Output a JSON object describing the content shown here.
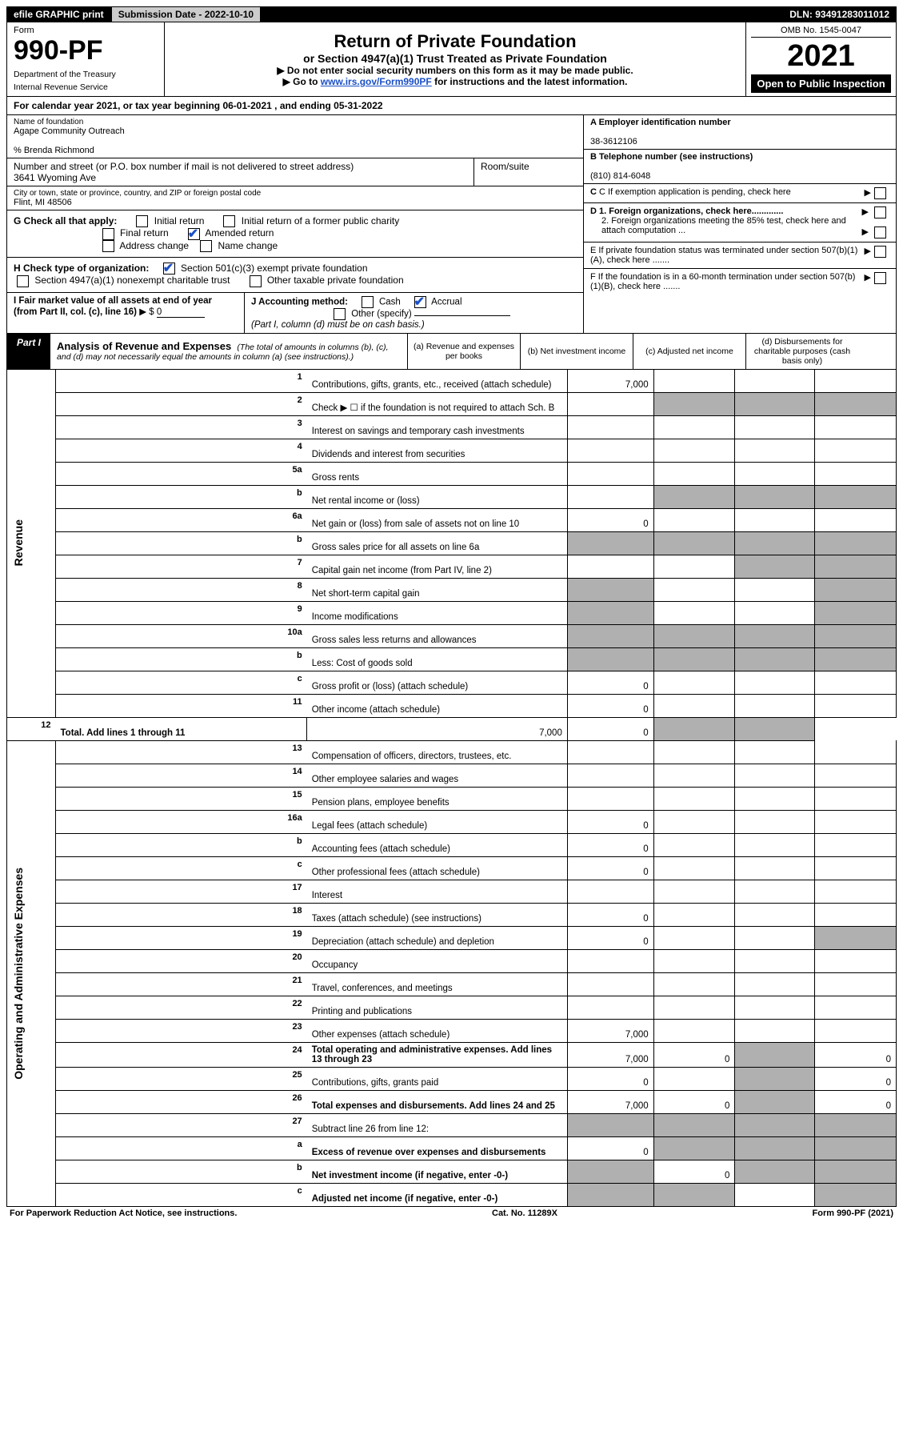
{
  "header_bar": {
    "efile": "efile GRAPHIC print",
    "submission": "Submission Date - 2022-10-10",
    "dln": "DLN: 93491283011012"
  },
  "top": {
    "form_label": "Form",
    "form_number": "990-PF",
    "dept1": "Department of the Treasury",
    "dept2": "Internal Revenue Service",
    "title": "Return of Private Foundation",
    "subtitle": "or Section 4947(a)(1) Trust Treated as Private Foundation",
    "instr1": "▶ Do not enter social security numbers on this form as it may be made public.",
    "instr2_pre": "▶ Go to ",
    "instr2_link": "www.irs.gov/Form990PF",
    "instr2_post": " for instructions and the latest information.",
    "omb": "OMB No. 1545-0047",
    "year": "2021",
    "open": "Open to Public Inspection"
  },
  "calendar": "For calendar year 2021, or tax year beginning 06-01-2021                                     , and ending 05-31-2022",
  "entity": {
    "name_label": "Name of foundation",
    "name": "Agape Community Outreach",
    "care_of": "% Brenda Richmond",
    "addr_label": "Number and street (or P.O. box number if mail is not delivered to street address)",
    "addr": "3641 Wyoming Ave",
    "room_label": "Room/suite",
    "city_label": "City or town, state or province, country, and ZIP or foreign postal code",
    "city": "Flint, MI  48506"
  },
  "right_block": {
    "A_label": "A Employer identification number",
    "A_val": "38-3612106",
    "B_label": "B Telephone number (see instructions)",
    "B_val": "(810) 814-6048",
    "C": "C If exemption application is pending, check here",
    "D1": "D 1. Foreign organizations, check here.............",
    "D2": "2. Foreign organizations meeting the 85% test, check here and attach computation ...",
    "E": "E  If private foundation status was terminated under section 507(b)(1)(A), check here .......",
    "F": "F  If the foundation is in a 60-month termination under section 507(b)(1)(B), check here .......",
    "arrow": "▶"
  },
  "sectionG": {
    "label": "G Check all that apply:",
    "initial": "Initial return",
    "initial_former": "Initial return of a former public charity",
    "final": "Final return",
    "amended": "Amended return",
    "addr_change": "Address change",
    "name_change": "Name change"
  },
  "sectionH": {
    "label": "H Check type of organization:",
    "opt1": "Section 501(c)(3) exempt private foundation",
    "opt2": "Section 4947(a)(1) nonexempt charitable trust",
    "opt3": "Other taxable private foundation"
  },
  "sectionI": {
    "label": "I Fair market value of all assets at end of year (from Part II, col. (c), line 16)",
    "arrow": "▶ $",
    "val": "0"
  },
  "sectionJ": {
    "label": "J Accounting method:",
    "cash": "Cash",
    "accrual": "Accrual",
    "other": "Other (specify)",
    "note": "(Part I, column (d) must be on cash basis.)"
  },
  "part1": {
    "tab": "Part I",
    "title": "Analysis of Revenue and Expenses",
    "title_note": "(The total of amounts in columns (b), (c), and (d) may not necessarily equal the amounts in column (a) (see instructions).)",
    "col_a": "(a)  Revenue and expenses per books",
    "col_b": "(b)  Net investment income",
    "col_c": "(c)  Adjusted net income",
    "col_d": "(d)  Disbursements for charitable purposes (cash basis only)",
    "side_rev": "Revenue",
    "side_exp": "Operating and Administrative Expenses"
  },
  "rows": [
    {
      "n": "1",
      "t": "Contributions, gifts, grants, etc., received (attach schedule)",
      "a": "7,000"
    },
    {
      "n": "2",
      "t": "Check ▶ ☐ if the foundation is not required to attach Sch. B"
    },
    {
      "n": "3",
      "t": "Interest on savings and temporary cash investments"
    },
    {
      "n": "4",
      "t": "Dividends and interest from securities"
    },
    {
      "n": "5a",
      "t": "Gross rents"
    },
    {
      "n": "b",
      "t": "Net rental income or (loss)"
    },
    {
      "n": "6a",
      "t": "Net gain or (loss) from sale of assets not on line 10",
      "a": "0"
    },
    {
      "n": "b",
      "t": "Gross sales price for all assets on line 6a"
    },
    {
      "n": "7",
      "t": "Capital gain net income (from Part IV, line 2)"
    },
    {
      "n": "8",
      "t": "Net short-term capital gain"
    },
    {
      "n": "9",
      "t": "Income modifications"
    },
    {
      "n": "10a",
      "t": "Gross sales less returns and allowances"
    },
    {
      "n": "b",
      "t": "Less: Cost of goods sold"
    },
    {
      "n": "c",
      "t": "Gross profit or (loss) (attach schedule)",
      "a": "0"
    },
    {
      "n": "11",
      "t": "Other income (attach schedule)",
      "a": "0"
    },
    {
      "n": "12",
      "t": "Total. Add lines 1 through 11",
      "a": "7,000",
      "b": "0",
      "bold": true
    },
    {
      "n": "13",
      "t": "Compensation of officers, directors, trustees, etc."
    },
    {
      "n": "14",
      "t": "Other employee salaries and wages"
    },
    {
      "n": "15",
      "t": "Pension plans, employee benefits"
    },
    {
      "n": "16a",
      "t": "Legal fees (attach schedule)",
      "a": "0"
    },
    {
      "n": "b",
      "t": "Accounting fees (attach schedule)",
      "a": "0"
    },
    {
      "n": "c",
      "t": "Other professional fees (attach schedule)",
      "a": "0"
    },
    {
      "n": "17",
      "t": "Interest"
    },
    {
      "n": "18",
      "t": "Taxes (attach schedule) (see instructions)",
      "a": "0"
    },
    {
      "n": "19",
      "t": "Depreciation (attach schedule) and depletion",
      "a": "0"
    },
    {
      "n": "20",
      "t": "Occupancy"
    },
    {
      "n": "21",
      "t": "Travel, conferences, and meetings"
    },
    {
      "n": "22",
      "t": "Printing and publications"
    },
    {
      "n": "23",
      "t": "Other expenses (attach schedule)",
      "a": "7,000"
    },
    {
      "n": "24",
      "t": "Total operating and administrative expenses. Add lines 13 through 23",
      "a": "7,000",
      "b": "0",
      "d": "0",
      "bold": true
    },
    {
      "n": "25",
      "t": "Contributions, gifts, grants paid",
      "a": "0",
      "d": "0"
    },
    {
      "n": "26",
      "t": "Total expenses and disbursements. Add lines 24 and 25",
      "a": "7,000",
      "b": "0",
      "d": "0",
      "bold": true
    },
    {
      "n": "27",
      "t": "Subtract line 26 from line 12:"
    },
    {
      "n": "a",
      "t": "Excess of revenue over expenses and disbursements",
      "a": "0",
      "bold": true
    },
    {
      "n": "b",
      "t": "Net investment income (if negative, enter -0-)",
      "b": "0",
      "bold": true
    },
    {
      "n": "c",
      "t": "Adjusted net income (if negative, enter -0-)",
      "bold": true
    }
  ],
  "grey_map": {
    "2": [
      "b",
      "c",
      "d"
    ],
    "5b": [
      "b",
      "c",
      "d"
    ],
    "6b": [
      "a",
      "b",
      "c",
      "d"
    ],
    "7": [
      "c",
      "d"
    ],
    "8": [
      "a",
      "d"
    ],
    "9": [
      "a",
      "d"
    ],
    "10a": [
      "a",
      "b",
      "c",
      "d"
    ],
    "10b": [
      "a",
      "b",
      "c",
      "d"
    ],
    "11": [],
    "12": [
      "c",
      "d"
    ],
    "19": [
      "d"
    ],
    "24": [
      "c"
    ],
    "25": [
      "c"
    ],
    "26": [
      "c"
    ],
    "27": [
      "a",
      "b",
      "c",
      "d"
    ],
    "27a": [
      "b",
      "c",
      "d"
    ],
    "27b": [
      "a",
      "c",
      "d"
    ],
    "27c": [
      "a",
      "b",
      "d"
    ]
  },
  "footer": {
    "left": "For Paperwork Reduction Act Notice, see instructions.",
    "mid": "Cat. No. 11289X",
    "right": "Form 990-PF (2021)"
  }
}
